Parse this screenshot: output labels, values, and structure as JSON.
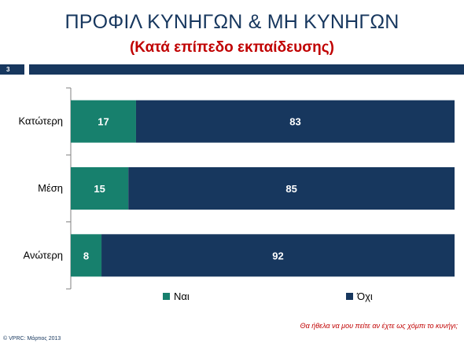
{
  "header": {
    "title": "ΠΡΟΦΙΛ ΚΥΝΗΓΩΝ & ΜΗ ΚΥΝΗΓΩΝ",
    "subtitle": "(Κατά επίπεδο εκπαίδευσης)",
    "page_number": "3"
  },
  "chart_data": {
    "type": "bar",
    "orientation": "horizontal",
    "stacked": true,
    "categories": [
      "Κατώτερη",
      "Μέση",
      "Ανώτερη"
    ],
    "series": [
      {
        "name": "Ναι",
        "values": [
          17,
          15,
          8
        ],
        "color": "#17806d"
      },
      {
        "name": "Όχι",
        "values": [
          83,
          85,
          92
        ],
        "color": "#17375e"
      }
    ],
    "xlim": [
      0,
      100
    ],
    "grid": false,
    "legend_position": "bottom"
  },
  "footer": {
    "question": "Θα ήθελα να μου πείτε αν έχτε ως χόμπι το κυνήγι;",
    "copyright": "© VPRC: Μάρτιος 2013"
  }
}
